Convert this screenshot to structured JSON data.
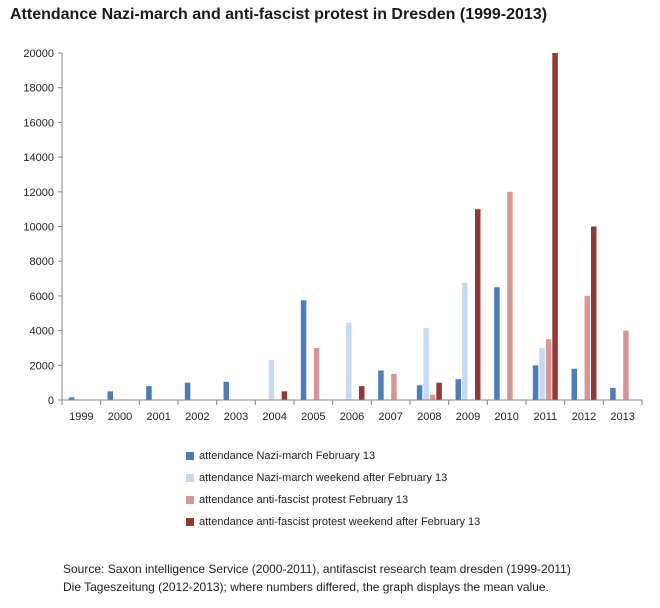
{
  "title": "Attendance Nazi-march and anti-fascist protest in Dresden (1999-2013)",
  "chart_data": {
    "type": "bar",
    "categories": [
      "1999",
      "2000",
      "2001",
      "2002",
      "2003",
      "2004",
      "2005",
      "2006",
      "2007",
      "2008",
      "2009",
      "2010",
      "2011",
      "2012",
      "2013"
    ],
    "ylim": [
      0,
      20000
    ],
    "yticks": [
      0,
      2000,
      4000,
      6000,
      8000,
      10000,
      12000,
      14000,
      16000,
      18000,
      20000
    ],
    "grid": false,
    "legend_position": "bottom",
    "series": [
      {
        "name": "attendance Nazi-march  February 13",
        "color": "#4a7ebb",
        "values": [
          150,
          500,
          800,
          1000,
          1050,
          0,
          5750,
          0,
          1700,
          850,
          1200,
          6500,
          2000,
          1800,
          700
        ]
      },
      {
        "name": "attendance Nazi-march weekend after February 13",
        "color": "#c6d9f1",
        "values": [
          0,
          0,
          0,
          0,
          0,
          2300,
          0,
          4450,
          0,
          4150,
          6750,
          0,
          3000,
          0,
          0
        ]
      },
      {
        "name": "attendance anti-fascist protest February 13",
        "color": "#d99594",
        "values": [
          0,
          0,
          0,
          0,
          0,
          0,
          3000,
          0,
          1500,
          300,
          0,
          12000,
          3500,
          6000,
          4000
        ]
      },
      {
        "name": "attendance anti-fascist protest weekend after February 13",
        "color": "#953735",
        "values": [
          0,
          0,
          0,
          0,
          0,
          500,
          0,
          800,
          0,
          1000,
          11000,
          0,
          20000,
          10000,
          0
        ]
      }
    ]
  },
  "source": {
    "line1": "Source: Saxon intelligence Service (2000-2011), antifascist research team dresden (1999-2011)",
    "line2": "Die Tageszeitung (2012-2013); where numbers differed, the graph displays the mean value."
  }
}
